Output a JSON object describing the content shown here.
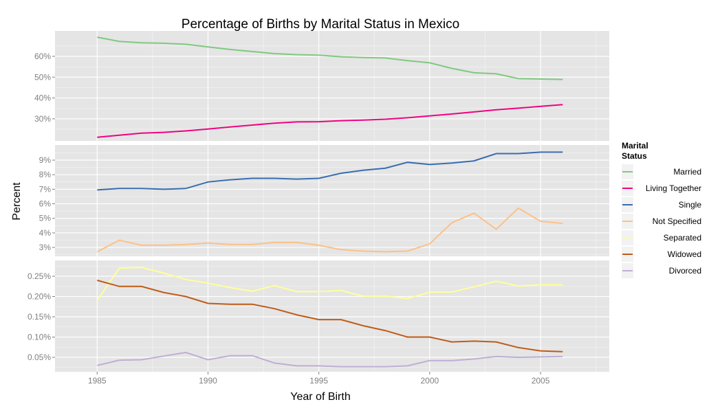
{
  "chart_data": {
    "type": "line",
    "title": "Percentage of Births by Marital Status in Mexico",
    "xlabel": "Year of Birth",
    "ylabel": "Percent",
    "x": [
      1985,
      1986,
      1987,
      1988,
      1989,
      1990,
      1991,
      1992,
      1993,
      1994,
      1995,
      1996,
      1997,
      1998,
      1999,
      2000,
      2001,
      2002,
      2003,
      2004,
      2005,
      2006
    ],
    "xticks": [
      1985,
      1990,
      1995,
      2000,
      2005
    ],
    "xlim": [
      1983.1,
      2008.1
    ],
    "grid": true,
    "legend": {
      "title": "Marital\nStatus",
      "title_lines": [
        "Marital",
        "Status"
      ],
      "placement": "right"
    },
    "panels": [
      {
        "ylim": [
          19.4,
          72.2
        ],
        "yticks": [
          30,
          40,
          50,
          60
        ],
        "ytick_labels": [
          "30%",
          "40%",
          "50%",
          "60%"
        ],
        "series": [
          "Married",
          "Living Together"
        ]
      },
      {
        "ylim": [
          2.39,
          10.04
        ],
        "yticks": [
          3,
          4,
          5,
          6,
          7,
          8,
          9
        ],
        "ytick_labels": [
          "3%",
          "4%",
          "5%",
          "6%",
          "7%",
          "8%",
          "9%"
        ],
        "series": [
          "Single",
          "Not Specified"
        ]
      },
      {
        "ylim": [
          0.0144,
          0.289
        ],
        "yticks": [
          0.05,
          0.1,
          0.15,
          0.2,
          0.25
        ],
        "ytick_labels": [
          "0.05%",
          "0.10%",
          "0.15%",
          "0.20%",
          "0.25%"
        ],
        "series": [
          "Separated",
          "Widowed",
          "Divorced"
        ]
      }
    ],
    "series": [
      {
        "name": "Married",
        "color": "#7fc97f",
        "values": [
          69.2,
          67.2,
          66.5,
          66.3,
          65.8,
          64.5,
          63.3,
          62.3,
          61.3,
          60.8,
          60.6,
          59.8,
          59.4,
          59.2,
          57.9,
          56.9,
          54.2,
          52.1,
          51.6,
          49.3,
          49.1,
          48.9
        ]
      },
      {
        "name": "Living Together",
        "color": "#f0027f",
        "values": [
          21.1,
          22.1,
          23.1,
          23.5,
          24.2,
          25.1,
          26.1,
          27.0,
          27.9,
          28.5,
          28.6,
          29.1,
          29.4,
          29.8,
          30.5,
          31.4,
          32.3,
          33.3,
          34.3,
          35.1,
          36.0,
          36.8
        ]
      },
      {
        "name": "Single",
        "color": "#386cb0",
        "values": [
          6.95,
          7.05,
          7.05,
          7.0,
          7.05,
          7.5,
          7.65,
          7.75,
          7.75,
          7.7,
          7.75,
          8.1,
          8.3,
          8.45,
          8.85,
          8.7,
          8.8,
          8.95,
          9.45,
          9.45,
          9.55,
          9.55
        ]
      },
      {
        "name": "Not Specified",
        "color": "#fdc086",
        "values": [
          2.7,
          3.5,
          3.15,
          3.15,
          3.2,
          3.3,
          3.2,
          3.2,
          3.35,
          3.35,
          3.15,
          2.85,
          2.75,
          2.7,
          2.75,
          3.25,
          4.7,
          5.35,
          4.25,
          5.7,
          4.8,
          4.65
        ]
      },
      {
        "name": "Separated",
        "color": "#ffff99",
        "values": [
          0.19,
          0.27,
          0.272,
          0.258,
          0.242,
          0.233,
          0.222,
          0.213,
          0.227,
          0.212,
          0.212,
          0.215,
          0.201,
          0.201,
          0.195,
          0.211,
          0.211,
          0.224,
          0.238,
          0.226,
          0.229,
          0.229
        ]
      },
      {
        "name": "Widowed",
        "color": "#bf5b17",
        "values": [
          0.24,
          0.225,
          0.225,
          0.21,
          0.2,
          0.183,
          0.181,
          0.181,
          0.17,
          0.155,
          0.143,
          0.143,
          0.128,
          0.116,
          0.1,
          0.1,
          0.088,
          0.09,
          0.088,
          0.074,
          0.066,
          0.064
        ]
      },
      {
        "name": "Divorced",
        "color": "#beaed4",
        "values": [
          0.03,
          0.043,
          0.044,
          0.053,
          0.062,
          0.044,
          0.054,
          0.054,
          0.036,
          0.029,
          0.029,
          0.027,
          0.027,
          0.027,
          0.029,
          0.042,
          0.042,
          0.046,
          0.052,
          0.05,
          0.051,
          0.052
        ]
      }
    ]
  }
}
